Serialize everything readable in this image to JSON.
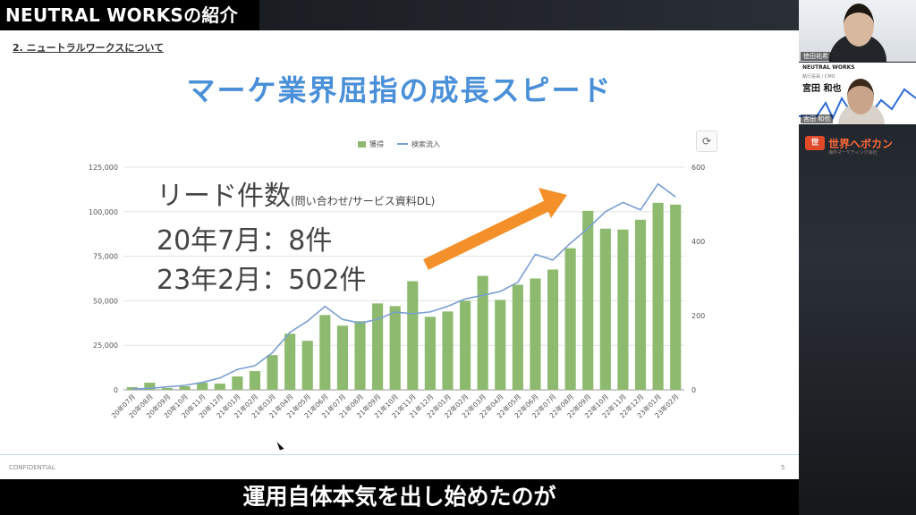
{
  "header": {
    "title": "NEUTRAL WORKSの紹介"
  },
  "slide": {
    "breadcrumb": "2. ニュートラルワークスについて",
    "headline": "マーケ業界屈指の成長スピード",
    "confidential": "CONFIDENTIAL",
    "page_number": "5"
  },
  "annotation": {
    "lead_title": "リード件数",
    "lead_note": "(問い合わせ/サービス資料DL)",
    "line1": "20年7月：8件",
    "line2": "23年2月：502件"
  },
  "subtitle": "運用自体本気を出し始めたのが",
  "participants": {
    "cam1_name": "徳田祐希",
    "cam2_logo": "NEUTRAL WORKS",
    "cam2_role": "執行役員 / CMO",
    "cam2_display_name": "宮田 和也",
    "cam2_sub": "",
    "cam2_name": "宮田 和也"
  },
  "sponsor": {
    "logo_mark": "世",
    "logo_text": "世界へボカン",
    "logo_sub": "海外マーケティング会社"
  },
  "colors": {
    "bar": "#8dba6f",
    "line": "#7a9fd0",
    "headline": "#4a90d9",
    "arrow": "#f4902a"
  },
  "chart_data": {
    "type": "bar",
    "legend": [
      "獲得",
      "検索流入"
    ],
    "legend_position": "top",
    "categories": [
      "20年07月",
      "20年08月",
      "20年09月",
      "20年10月",
      "20年11月",
      "20年12月",
      "21年01月",
      "21年02月",
      "21年03月",
      "21年04月",
      "21年05月",
      "21年06月",
      "21年07月",
      "21年08月",
      "21年09月",
      "21年10月",
      "21年11月",
      "21年12月",
      "22年01月",
      "22年02月",
      "22年03月",
      "22年04月",
      "22年05月",
      "22年06月",
      "22年07月",
      "22年08月",
      "22年09月",
      "22年10月",
      "22年11月",
      "22年12月",
      "23年01月",
      "23年02月"
    ],
    "series": [
      {
        "name": "獲得",
        "type": "bar",
        "axis": "left",
        "values": [
          1500,
          4000,
          1000,
          2000,
          4000,
          3500,
          7500,
          10500,
          19500,
          31500,
          27500,
          42000,
          36000,
          38500,
          48500,
          47000,
          61000,
          41000,
          44000,
          50000,
          64000,
          50500,
          59000,
          62500,
          67500,
          79500,
          100500,
          90500,
          90000,
          95500,
          105000,
          104000
        ]
      },
      {
        "name": "検索流入",
        "type": "line",
        "axis": "right",
        "values": [
          2,
          4,
          8,
          12,
          20,
          32,
          55,
          65,
          100,
          155,
          185,
          225,
          190,
          180,
          190,
          210,
          205,
          210,
          225,
          245,
          255,
          265,
          290,
          365,
          350,
          395,
          435,
          480,
          505,
          485,
          555,
          520
        ]
      }
    ],
    "ylim_left": [
      0,
      125000
    ],
    "yticks_left": [
      "0",
      "25,000",
      "50,000",
      "75,000",
      "100,000",
      "125,000"
    ],
    "ylim_right": [
      0,
      600
    ],
    "yticks_right": [
      "0",
      "200",
      "400",
      "600"
    ],
    "grid": true
  }
}
